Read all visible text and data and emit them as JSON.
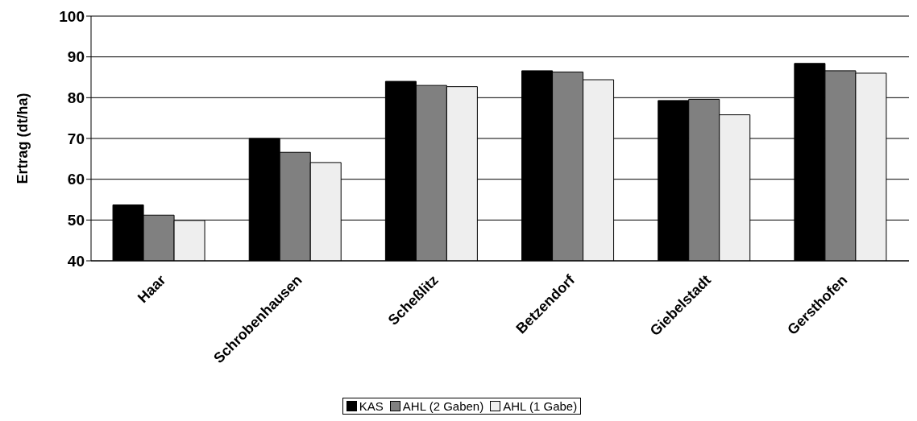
{
  "chart_data": {
    "type": "bar",
    "ylabel": "Ertrag (dt/ha)",
    "categories": [
      "Haar",
      "Schrobenhausen",
      "Scheßlitz",
      "Betzendorf",
      "Giebelstadt",
      "Gersthofen"
    ],
    "series": [
      {
        "name": "KAS",
        "color": "#000000",
        "values": [
          53.7,
          70.0,
          84.0,
          86.6,
          79.3,
          88.4
        ]
      },
      {
        "name": "AHL (2 Gaben)",
        "color": "#808080",
        "values": [
          51.2,
          66.6,
          83.0,
          86.3,
          79.6,
          86.6
        ]
      },
      {
        "name": "AHL (1 Gabe)",
        "color": "#eeeeee",
        "values": [
          49.9,
          64.1,
          82.7,
          84.4,
          75.8,
          86.0
        ]
      }
    ],
    "ylim": [
      40,
      100
    ],
    "yticks": [
      40,
      50,
      60,
      70,
      80,
      90,
      100
    ],
    "grid": "y",
    "legend": "bottom"
  }
}
